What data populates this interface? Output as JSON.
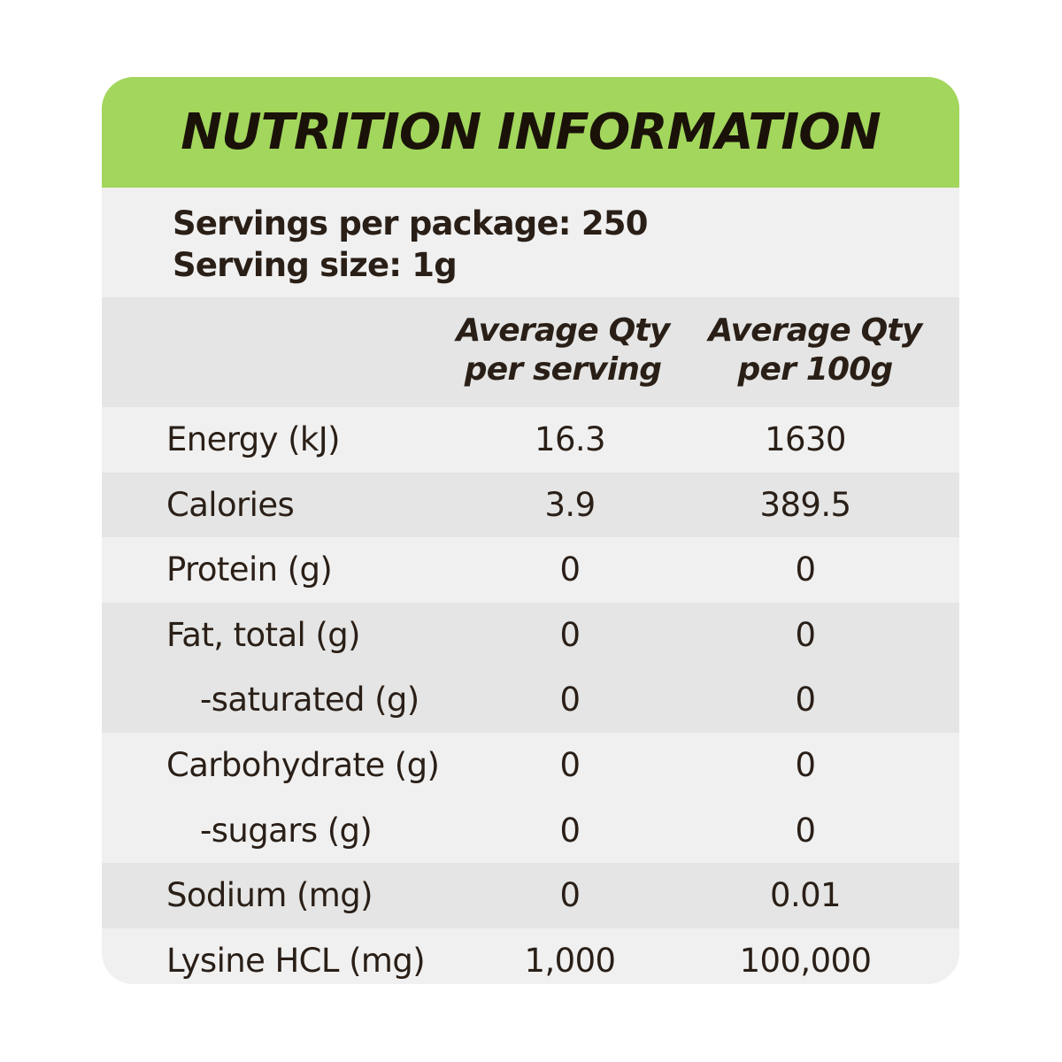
{
  "title": "NUTRITION INFORMATION",
  "servings": {
    "per_package": "Servings per package: 250",
    "size": "Serving size: 1g"
  },
  "columns": {
    "per_serving": [
      "Average Qty",
      "per serving"
    ],
    "per_100g": [
      "Average Qty",
      "per 100g"
    ]
  },
  "rows": [
    {
      "label": "Energy (kJ)",
      "per_serving": "16.3",
      "per_100g": "1630",
      "sub": false
    },
    {
      "label": "Calories",
      "per_serving": "3.9",
      "per_100g": "389.5",
      "sub": false
    },
    {
      "label": "Protein (g)",
      "per_serving": "0",
      "per_100g": "0",
      "sub": false
    },
    {
      "label": "Fat, total (g)",
      "per_serving": "0",
      "per_100g": "0",
      "sub": false
    },
    {
      "label": "-saturated (g)",
      "per_serving": "0",
      "per_100g": "0",
      "sub": true
    },
    {
      "label": "Carbohydrate (g)",
      "per_serving": "0",
      "per_100g": "0",
      "sub": false
    },
    {
      "label": "-sugars (g)",
      "per_serving": "0",
      "per_100g": "0",
      "sub": true
    },
    {
      "label": "Sodium (mg)",
      "per_serving": "0",
      "per_100g": "0.01",
      "sub": false
    },
    {
      "label": "Lysine HCL (mg)",
      "per_serving": "1,000",
      "per_100g": "100,000",
      "sub": false
    }
  ],
  "colors": {
    "title_band": "#a2d65c",
    "row_light": "#f0f0f0",
    "row_shaded": "#e4e5e4",
    "text": "#2a1f17"
  }
}
